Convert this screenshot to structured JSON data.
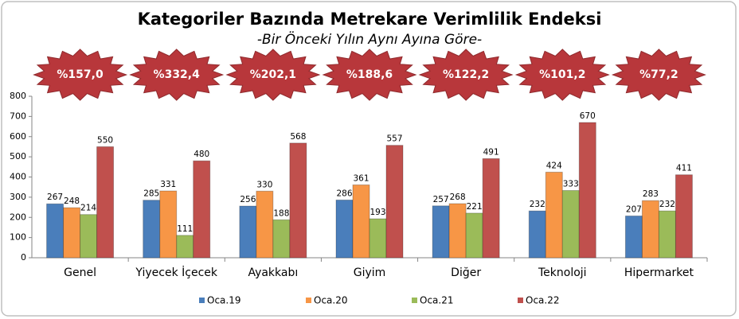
{
  "chart_data": {
    "type": "bar",
    "title": "Kategoriler Bazında Metrekare Verimlilik Endeksi",
    "subtitle": "-Bir Önceki Yılın Aynı Ayına Göre-",
    "categories": [
      "Genel",
      "Yiyecek İçecek",
      "Ayakkabı",
      "Giyim",
      "Diğer",
      "Teknoloji",
      "Hipermarket"
    ],
    "annotations": [
      "%157,0",
      "%332,4",
      "%202,1",
      "%188,6",
      "%122,2",
      "%101,2",
      "%77,2"
    ],
    "series": [
      {
        "name": "Oca.19",
        "color": "#4a7ebb",
        "values": [
          267,
          285,
          256,
          286,
          257,
          232,
          207
        ]
      },
      {
        "name": "Oca.20",
        "color": "#f79646",
        "values": [
          248,
          331,
          330,
          361,
          268,
          424,
          283
        ]
      },
      {
        "name": "Oca.21",
        "color": "#9bbb59",
        "values": [
          214,
          111,
          188,
          193,
          221,
          333,
          232
        ]
      },
      {
        "name": "Oca.22",
        "color": "#c0504d",
        "values": [
          550,
          480,
          568,
          557,
          491,
          670,
          411
        ]
      }
    ],
    "ylim": [
      0,
      800
    ],
    "yticks": [
      0,
      100,
      200,
      300,
      400,
      500,
      600,
      700,
      800
    ],
    "grid": false
  }
}
